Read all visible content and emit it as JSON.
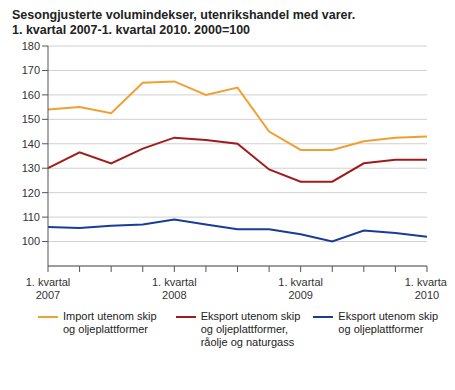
{
  "chart_data": {
    "type": "line",
    "title": "Sesongjusterte volumindekser, utenrikshandel med varer.",
    "subtitle": "1. kvartal 2007-1. kvartal 2010. 2000=100",
    "categories": [
      "1. kvartal 2007",
      null,
      null,
      null,
      "1. kvartal 2008",
      null,
      null,
      null,
      "1. kvartal 2009",
      null,
      null,
      null,
      "1. kvartal 2010"
    ],
    "series": [
      {
        "name": "Import utenom skip og oljeplattformer",
        "color": "#f0a030",
        "values": [
          154,
          155,
          152.5,
          165,
          165.5,
          160,
          163,
          145,
          137.5,
          137.5,
          141,
          142.5,
          143
        ]
      },
      {
        "name": "Eksport utenom skip og oljeplattformer, råolje og naturgass",
        "color": "#a01c1c",
        "values": [
          130,
          136.5,
          132,
          138,
          142.5,
          141.5,
          140,
          129.5,
          124.5,
          124.5,
          132,
          133.5,
          133.5
        ]
      },
      {
        "name": "Eksport utenom skip og oljeplattformer",
        "color": "#1a3c99",
        "values": [
          106,
          105.5,
          106.5,
          107,
          109,
          107,
          105,
          105,
          103,
          100,
          104.5,
          103.5,
          102
        ]
      }
    ],
    "ylim": [
      90,
      180
    ],
    "yticks": [
      100,
      110,
      120,
      130,
      140,
      150,
      160,
      170,
      180
    ],
    "grid": true,
    "legend": "bottom"
  }
}
